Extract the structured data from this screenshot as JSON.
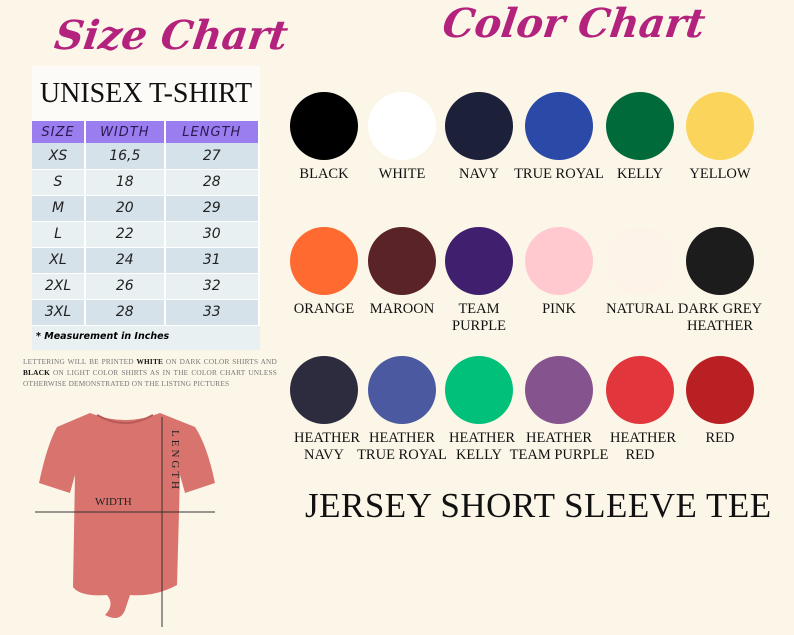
{
  "size_chart": {
    "title": "Size Chart",
    "subtitle": "UNISEX T-SHIRT",
    "headers": [
      "SIZE",
      "WIDTH",
      "LENGTH"
    ],
    "rows": [
      [
        "XS",
        "16,5",
        "27"
      ],
      [
        "S",
        "18",
        "28"
      ],
      [
        "M",
        "20",
        "29"
      ],
      [
        "L",
        "22",
        "30"
      ],
      [
        "XL",
        "24",
        "31"
      ],
      [
        "2XL",
        "26",
        "32"
      ],
      [
        "3XL",
        "28",
        "33"
      ]
    ],
    "note": "* Measurement in Inches"
  },
  "disclaimer": {
    "part1": "Lettering will be printed ",
    "white": "WHITE",
    "part2": " on dark color shirts and ",
    "black": "BLACK",
    "part3": " on light color shirts as in the color chart unless otherwise demonstrated on the listing pictures"
  },
  "tee_diagram": {
    "width_label": "WIDTH",
    "length_label": "LENGTH",
    "shirt_color": "#d9736e"
  },
  "color_chart": {
    "title": "Color Chart",
    "colors": [
      {
        "name": "BLACK",
        "hex": "#000000"
      },
      {
        "name": "WHITE",
        "hex": "#ffffff"
      },
      {
        "name": "NAVY",
        "hex": "#1c2038"
      },
      {
        "name": "TRUE ROYAL",
        "hex": "#2b4aa8"
      },
      {
        "name": "KELLY",
        "hex": "#006a3a"
      },
      {
        "name": "YELLOW",
        "hex": "#fbd45c"
      },
      {
        "name": "ORANGE",
        "hex": "#ff6a30"
      },
      {
        "name": "MAROON",
        "hex": "#5a2328"
      },
      {
        "name": "TEAM PURPLE",
        "hex": "#3f1f6e"
      },
      {
        "name": "PINK",
        "hex": "#ffc9cf"
      },
      {
        "name": "NATURAL",
        "hex": "#fdf3e8"
      },
      {
        "name": "DARK GREY HEATHER",
        "hex": "#1c1c1c"
      },
      {
        "name": "HEATHER NAVY",
        "hex": "#2d2b3e"
      },
      {
        "name": "HEATHER TRUE ROYAL",
        "hex": "#4b5aa0"
      },
      {
        "name": "HEATHER KELLY",
        "hex": "#00c07a"
      },
      {
        "name": "HEATHER TEAM PURPLE",
        "hex": "#85548f"
      },
      {
        "name": "HEATHER RED",
        "hex": "#e0363c"
      },
      {
        "name": "RED",
        "hex": "#b82024"
      }
    ]
  },
  "product_title": "JERSEY SHORT SLEEVE TEE"
}
